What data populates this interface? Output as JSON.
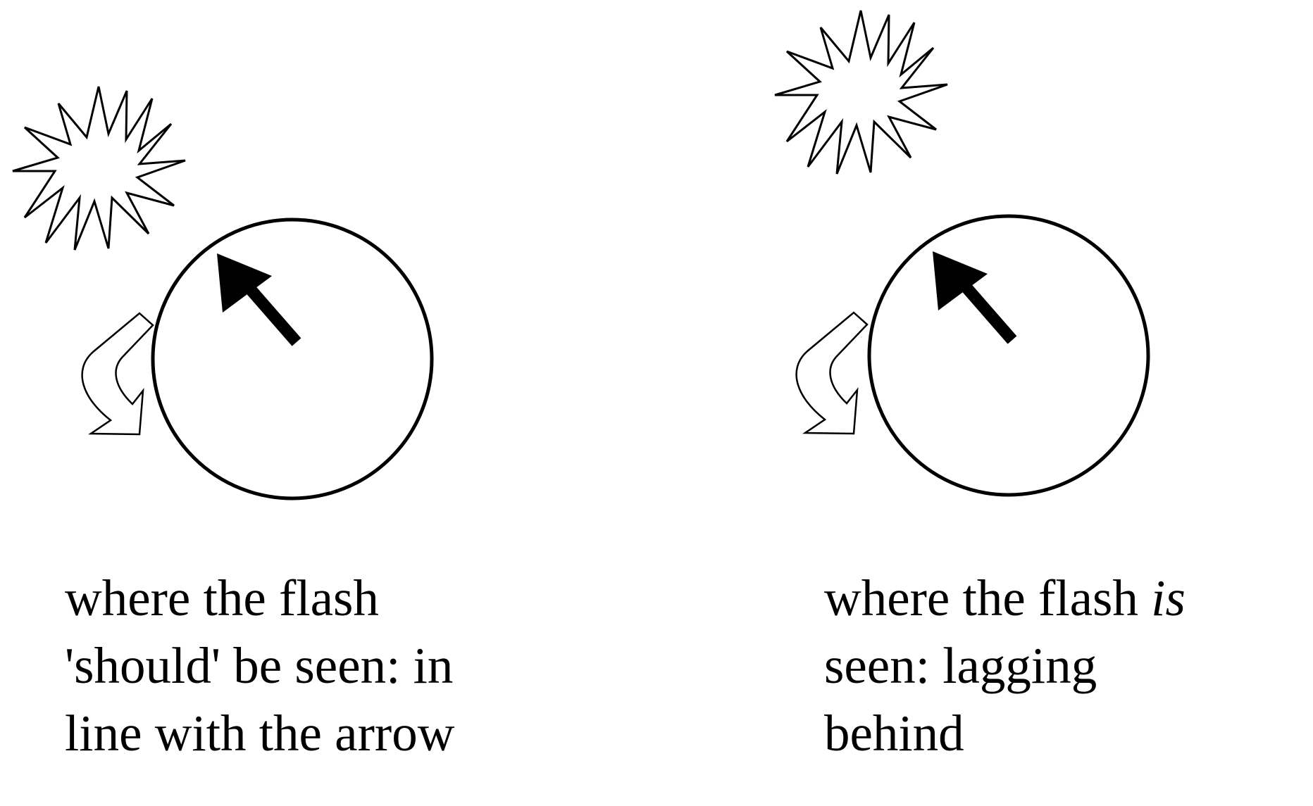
{
  "panels": [
    {
      "id": "expected",
      "caption": {
        "line1": "where the flash",
        "line2": "'should' be seen: in",
        "line3": "line with the arrow"
      }
    },
    {
      "id": "perceived",
      "caption": {
        "line1_prefix": "where the flash ",
        "line1_emphasis": "is",
        "line2": "seen: lagging",
        "line3": "behind"
      }
    }
  ],
  "colors": {
    "stroke": "#000000",
    "background": "#ffffff"
  }
}
